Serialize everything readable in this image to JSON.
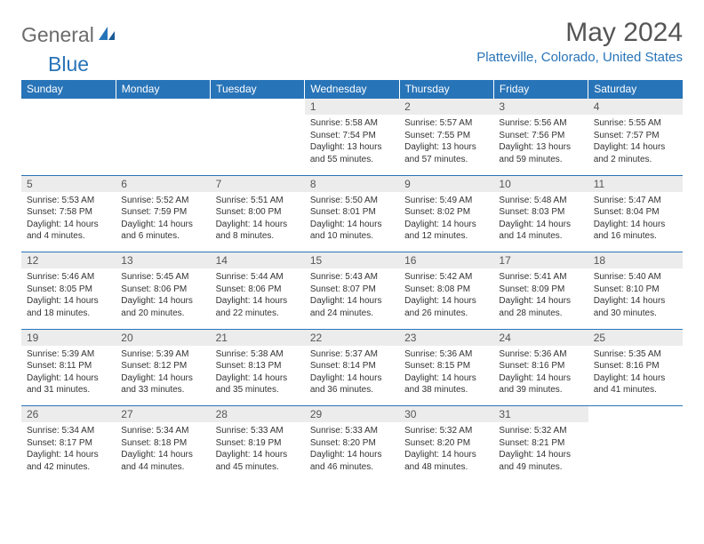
{
  "logo": {
    "part1": "General",
    "part2": "Blue"
  },
  "title": "May 2024",
  "location": "Platteville, Colorado, United States",
  "colors": {
    "header_bg": "#2874b8",
    "header_text": "#ffffff",
    "daynum_bg": "#ececec",
    "border_top": "#2874b8",
    "logo_gray": "#6b6b6b",
    "logo_blue": "#2874b8",
    "location_color": "#2874b8",
    "title_color": "#555555",
    "cell_text": "#333333",
    "background": "#ffffff"
  },
  "typography": {
    "title_fontsize": 30,
    "location_fontsize": 15,
    "header_fontsize": 12,
    "daynum_fontsize": 12,
    "cell_fontsize": 10,
    "logo_fontsize": 23
  },
  "weekdays": [
    "Sunday",
    "Monday",
    "Tuesday",
    "Wednesday",
    "Thursday",
    "Friday",
    "Saturday"
  ],
  "weeks": [
    {
      "nums": [
        "",
        "",
        "",
        "1",
        "2",
        "3",
        "4"
      ],
      "cells": [
        null,
        null,
        null,
        {
          "sunrise": "Sunrise: 5:58 AM",
          "sunset": "Sunset: 7:54 PM",
          "daylight1": "Daylight: 13 hours",
          "daylight2": "and 55 minutes."
        },
        {
          "sunrise": "Sunrise: 5:57 AM",
          "sunset": "Sunset: 7:55 PM",
          "daylight1": "Daylight: 13 hours",
          "daylight2": "and 57 minutes."
        },
        {
          "sunrise": "Sunrise: 5:56 AM",
          "sunset": "Sunset: 7:56 PM",
          "daylight1": "Daylight: 13 hours",
          "daylight2": "and 59 minutes."
        },
        {
          "sunrise": "Sunrise: 5:55 AM",
          "sunset": "Sunset: 7:57 PM",
          "daylight1": "Daylight: 14 hours",
          "daylight2": "and 2 minutes."
        }
      ]
    },
    {
      "nums": [
        "5",
        "6",
        "7",
        "8",
        "9",
        "10",
        "11"
      ],
      "cells": [
        {
          "sunrise": "Sunrise: 5:53 AM",
          "sunset": "Sunset: 7:58 PM",
          "daylight1": "Daylight: 14 hours",
          "daylight2": "and 4 minutes."
        },
        {
          "sunrise": "Sunrise: 5:52 AM",
          "sunset": "Sunset: 7:59 PM",
          "daylight1": "Daylight: 14 hours",
          "daylight2": "and 6 minutes."
        },
        {
          "sunrise": "Sunrise: 5:51 AM",
          "sunset": "Sunset: 8:00 PM",
          "daylight1": "Daylight: 14 hours",
          "daylight2": "and 8 minutes."
        },
        {
          "sunrise": "Sunrise: 5:50 AM",
          "sunset": "Sunset: 8:01 PM",
          "daylight1": "Daylight: 14 hours",
          "daylight2": "and 10 minutes."
        },
        {
          "sunrise": "Sunrise: 5:49 AM",
          "sunset": "Sunset: 8:02 PM",
          "daylight1": "Daylight: 14 hours",
          "daylight2": "and 12 minutes."
        },
        {
          "sunrise": "Sunrise: 5:48 AM",
          "sunset": "Sunset: 8:03 PM",
          "daylight1": "Daylight: 14 hours",
          "daylight2": "and 14 minutes."
        },
        {
          "sunrise": "Sunrise: 5:47 AM",
          "sunset": "Sunset: 8:04 PM",
          "daylight1": "Daylight: 14 hours",
          "daylight2": "and 16 minutes."
        }
      ]
    },
    {
      "nums": [
        "12",
        "13",
        "14",
        "15",
        "16",
        "17",
        "18"
      ],
      "cells": [
        {
          "sunrise": "Sunrise: 5:46 AM",
          "sunset": "Sunset: 8:05 PM",
          "daylight1": "Daylight: 14 hours",
          "daylight2": "and 18 minutes."
        },
        {
          "sunrise": "Sunrise: 5:45 AM",
          "sunset": "Sunset: 8:06 PM",
          "daylight1": "Daylight: 14 hours",
          "daylight2": "and 20 minutes."
        },
        {
          "sunrise": "Sunrise: 5:44 AM",
          "sunset": "Sunset: 8:06 PM",
          "daylight1": "Daylight: 14 hours",
          "daylight2": "and 22 minutes."
        },
        {
          "sunrise": "Sunrise: 5:43 AM",
          "sunset": "Sunset: 8:07 PM",
          "daylight1": "Daylight: 14 hours",
          "daylight2": "and 24 minutes."
        },
        {
          "sunrise": "Sunrise: 5:42 AM",
          "sunset": "Sunset: 8:08 PM",
          "daylight1": "Daylight: 14 hours",
          "daylight2": "and 26 minutes."
        },
        {
          "sunrise": "Sunrise: 5:41 AM",
          "sunset": "Sunset: 8:09 PM",
          "daylight1": "Daylight: 14 hours",
          "daylight2": "and 28 minutes."
        },
        {
          "sunrise": "Sunrise: 5:40 AM",
          "sunset": "Sunset: 8:10 PM",
          "daylight1": "Daylight: 14 hours",
          "daylight2": "and 30 minutes."
        }
      ]
    },
    {
      "nums": [
        "19",
        "20",
        "21",
        "22",
        "23",
        "24",
        "25"
      ],
      "cells": [
        {
          "sunrise": "Sunrise: 5:39 AM",
          "sunset": "Sunset: 8:11 PM",
          "daylight1": "Daylight: 14 hours",
          "daylight2": "and 31 minutes."
        },
        {
          "sunrise": "Sunrise: 5:39 AM",
          "sunset": "Sunset: 8:12 PM",
          "daylight1": "Daylight: 14 hours",
          "daylight2": "and 33 minutes."
        },
        {
          "sunrise": "Sunrise: 5:38 AM",
          "sunset": "Sunset: 8:13 PM",
          "daylight1": "Daylight: 14 hours",
          "daylight2": "and 35 minutes."
        },
        {
          "sunrise": "Sunrise: 5:37 AM",
          "sunset": "Sunset: 8:14 PM",
          "daylight1": "Daylight: 14 hours",
          "daylight2": "and 36 minutes."
        },
        {
          "sunrise": "Sunrise: 5:36 AM",
          "sunset": "Sunset: 8:15 PM",
          "daylight1": "Daylight: 14 hours",
          "daylight2": "and 38 minutes."
        },
        {
          "sunrise": "Sunrise: 5:36 AM",
          "sunset": "Sunset: 8:16 PM",
          "daylight1": "Daylight: 14 hours",
          "daylight2": "and 39 minutes."
        },
        {
          "sunrise": "Sunrise: 5:35 AM",
          "sunset": "Sunset: 8:16 PM",
          "daylight1": "Daylight: 14 hours",
          "daylight2": "and 41 minutes."
        }
      ]
    },
    {
      "nums": [
        "26",
        "27",
        "28",
        "29",
        "30",
        "31",
        ""
      ],
      "cells": [
        {
          "sunrise": "Sunrise: 5:34 AM",
          "sunset": "Sunset: 8:17 PM",
          "daylight1": "Daylight: 14 hours",
          "daylight2": "and 42 minutes."
        },
        {
          "sunrise": "Sunrise: 5:34 AM",
          "sunset": "Sunset: 8:18 PM",
          "daylight1": "Daylight: 14 hours",
          "daylight2": "and 44 minutes."
        },
        {
          "sunrise": "Sunrise: 5:33 AM",
          "sunset": "Sunset: 8:19 PM",
          "daylight1": "Daylight: 14 hours",
          "daylight2": "and 45 minutes."
        },
        {
          "sunrise": "Sunrise: 5:33 AM",
          "sunset": "Sunset: 8:20 PM",
          "daylight1": "Daylight: 14 hours",
          "daylight2": "and 46 minutes."
        },
        {
          "sunrise": "Sunrise: 5:32 AM",
          "sunset": "Sunset: 8:20 PM",
          "daylight1": "Daylight: 14 hours",
          "daylight2": "and 48 minutes."
        },
        {
          "sunrise": "Sunrise: 5:32 AM",
          "sunset": "Sunset: 8:21 PM",
          "daylight1": "Daylight: 14 hours",
          "daylight2": "and 49 minutes."
        },
        null
      ]
    }
  ]
}
